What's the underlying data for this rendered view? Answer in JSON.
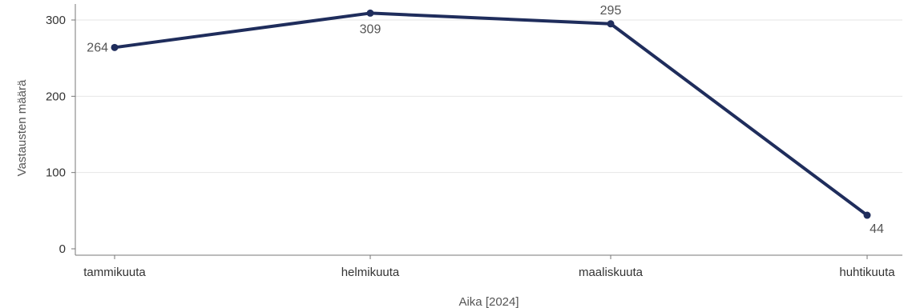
{
  "chart_data": {
    "type": "line",
    "categories": [
      "tammikuuta",
      "helmikuuta",
      "maaliskuuta",
      "huhtikuuta"
    ],
    "series": [
      {
        "values": [
          264,
          309,
          295,
          44
        ],
        "color": "#1f2d5c"
      }
    ],
    "title": "",
    "xlabel": "Aika [2024]",
    "ylabel": "Vastausten määrä",
    "ylim": [
      0,
      330
    ],
    "yticks": [
      0,
      100,
      200,
      300
    ],
    "grid": true,
    "legend": "none"
  }
}
